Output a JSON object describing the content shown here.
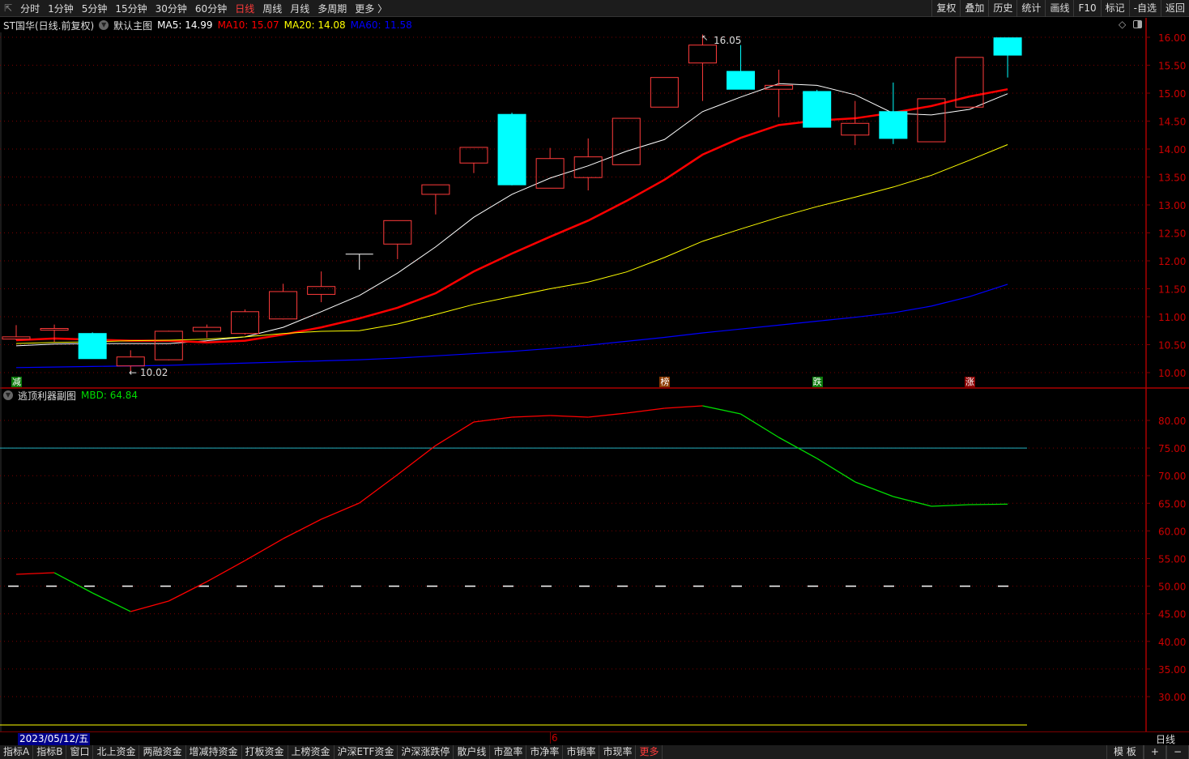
{
  "toolbar": {
    "periods": [
      "分时",
      "1分钟",
      "5分钟",
      "15分钟",
      "30分钟",
      "60分钟",
      "日线",
      "周线",
      "月线",
      "多周期",
      "更多 〉"
    ],
    "active_period": "日线",
    "right_buttons": [
      "复权",
      "叠加",
      "历史",
      "统计",
      "画线",
      "F10",
      "标记",
      "-自选",
      "返回"
    ]
  },
  "info": {
    "title": "ST国华(日线.前复权)",
    "template": "默认主图",
    "ma5": "MA5: 14.99",
    "ma10": "MA10: 15.07",
    "ma20": "MA20: 14.08",
    "ma60": "MA60: 11.58"
  },
  "sub": {
    "title": "逃顶利器副图",
    "mbd": "MBD: 64.84"
  },
  "colors": {
    "up": "#ff3b3b",
    "down": "#00ffff",
    "ma5": "#ffffff",
    "ma10": "#ff0000",
    "ma20": "#ffff00",
    "ma60": "#0000ff",
    "grid": "#7a0000",
    "axis_text": "#cc0000"
  },
  "markers": [
    {
      "label": "减",
      "bg": "#0a7a0a",
      "index": 0
    },
    {
      "label": "榜",
      "bg": "#8b3a00",
      "index": 17
    },
    {
      "label": "跌",
      "bg": "#0a7a0a",
      "index": 21
    },
    {
      "label": "涨",
      "bg": "#8b0000",
      "index": 25
    }
  ],
  "chart_data": [
    {
      "type": "candlestick",
      "ylim": [
        10.0,
        16.0
      ],
      "ticks": [
        "16.00",
        "15.50",
        "15.00",
        "14.50",
        "14.00",
        "13.50",
        "13.00",
        "12.50",
        "12.00",
        "11.50",
        "11.00",
        "10.50",
        "10.00"
      ],
      "annotations": {
        "high": "16.05",
        "low": "10.02"
      },
      "ohlc": [
        [
          10.6,
          10.85,
          10.58,
          10.64
        ],
        [
          10.76,
          10.86,
          10.55,
          10.79
        ],
        [
          10.7,
          10.72,
          10.25,
          10.25
        ],
        [
          10.12,
          10.4,
          10.02,
          10.28
        ],
        [
          10.23,
          10.75,
          10.22,
          10.74
        ],
        [
          10.74,
          10.86,
          10.62,
          10.81
        ],
        [
          10.7,
          11.13,
          10.68,
          11.09
        ],
        [
          10.96,
          11.59,
          10.95,
          11.45
        ],
        [
          11.4,
          11.81,
          11.26,
          11.54
        ],
        [
          12.12,
          12.12,
          11.84,
          12.12
        ],
        [
          12.3,
          12.72,
          12.03,
          12.72
        ],
        [
          13.19,
          13.36,
          12.83,
          13.36
        ],
        [
          13.75,
          14.03,
          13.57,
          14.03
        ],
        [
          14.62,
          14.65,
          13.35,
          13.36
        ],
        [
          13.3,
          14.02,
          13.3,
          13.83
        ],
        [
          13.49,
          14.19,
          13.26,
          13.86
        ],
        [
          13.72,
          14.55,
          13.72,
          14.55
        ],
        [
          14.75,
          15.28,
          14.75,
          15.28
        ],
        [
          15.54,
          16.05,
          14.86,
          15.86
        ],
        [
          15.39,
          15.86,
          15.07,
          15.07
        ],
        [
          15.07,
          15.42,
          14.57,
          15.14
        ],
        [
          15.03,
          15.06,
          14.39,
          14.39
        ],
        [
          14.25,
          14.86,
          14.07,
          14.46
        ],
        [
          14.67,
          15.19,
          14.09,
          14.19
        ],
        [
          14.13,
          14.9,
          14.13,
          14.9
        ],
        [
          14.75,
          15.64,
          14.75,
          15.64
        ],
        [
          15.99,
          15.99,
          15.28,
          15.68
        ]
      ],
      "series": [
        {
          "name": "MA5",
          "values": [
            10.48,
            10.51,
            10.52,
            10.52,
            10.52,
            10.57,
            10.64,
            10.81,
            11.09,
            11.38,
            11.78,
            12.25,
            12.78,
            13.19,
            13.48,
            13.7,
            13.96,
            14.17,
            14.67,
            14.93,
            15.17,
            15.14,
            14.97,
            14.64,
            14.61,
            14.71,
            14.99
          ]
        },
        {
          "name": "MA10",
          "values": [
            10.58,
            10.61,
            10.59,
            10.57,
            10.57,
            10.54,
            10.57,
            10.68,
            10.81,
            10.97,
            11.16,
            11.42,
            11.81,
            12.13,
            12.43,
            12.72,
            13.07,
            13.45,
            13.9,
            14.2,
            14.43,
            14.51,
            14.55,
            14.65,
            14.77,
            14.94,
            15.07
          ]
        },
        {
          "name": "MA20",
          "values": [
            10.52,
            10.54,
            10.55,
            10.57,
            10.58,
            10.6,
            10.64,
            10.7,
            10.74,
            10.75,
            10.87,
            11.04,
            11.22,
            11.36,
            11.5,
            11.62,
            11.8,
            12.06,
            12.35,
            12.57,
            12.78,
            12.97,
            13.14,
            13.32,
            13.53,
            13.8,
            14.08
          ]
        },
        {
          "name": "MA60",
          "values": [
            10.09,
            10.1,
            10.11,
            10.12,
            10.13,
            10.15,
            10.17,
            10.19,
            10.21,
            10.23,
            10.26,
            10.3,
            10.34,
            10.38,
            10.43,
            10.49,
            10.56,
            10.63,
            10.71,
            10.78,
            10.85,
            10.92,
            10.99,
            11.07,
            11.19,
            11.36,
            11.58
          ]
        }
      ]
    },
    {
      "type": "line",
      "ylim": [
        25,
        84
      ],
      "ticks": [
        "80.00",
        "75.00",
        "70.00",
        "65.00",
        "60.00",
        "55.00",
        "50.00",
        "45.00",
        "40.00",
        "35.00",
        "30.00"
      ],
      "series": [
        {
          "name": "MBD",
          "values": [
            52.14,
            52.43,
            48.77,
            45.4,
            47.3,
            50.82,
            54.63,
            58.59,
            62.11,
            65.04,
            70.18,
            75.45,
            79.71,
            80.59,
            80.88,
            80.59,
            81.32,
            82.2,
            82.64,
            81.17,
            76.92,
            73.11,
            68.86,
            66.22,
            64.46,
            64.75,
            64.84
          ],
          "segment_colors": [
            "r",
            "g",
            "g",
            "r",
            "r",
            "r",
            "r",
            "r",
            "r",
            "r",
            "r",
            "r",
            "r",
            "r",
            "r",
            "r",
            "r",
            "r",
            "g",
            "g",
            "g",
            "g",
            "g",
            "g",
            "g",
            "g"
          ]
        }
      ],
      "reference_lines": [
        75,
        50,
        25
      ]
    }
  ],
  "date": {
    "current": "2023/05/12/五",
    "month_mark": "6",
    "period": "日线"
  },
  "bottom": {
    "tabs": [
      "指标A",
      "指标B",
      "窗口",
      "北上资金",
      "两融资金",
      "增减持资金",
      "打板资金",
      "上榜资金",
      "沪深ETF资金",
      "沪深涨跌停",
      "散户线",
      "市盈率",
      "市净率",
      "市销率",
      "市现率",
      "更多"
    ],
    "right": [
      "模 板",
      "+",
      "−"
    ]
  }
}
